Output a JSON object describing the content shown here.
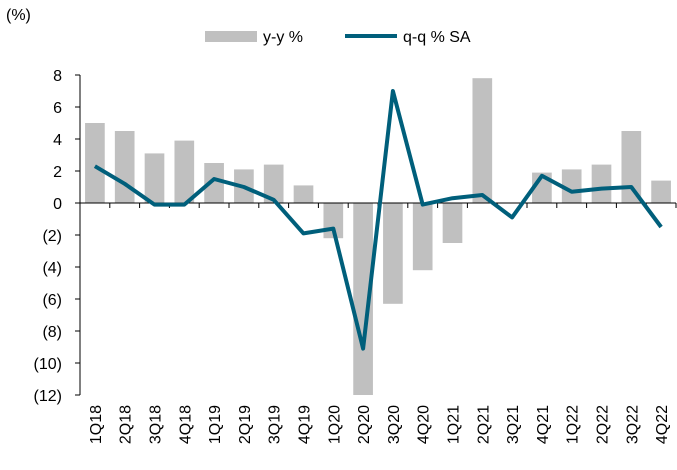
{
  "chart_data": {
    "type": "bar-line",
    "y_label": "(%)",
    "categories": [
      "1Q18",
      "2Q18",
      "3Q18",
      "4Q18",
      "1Q19",
      "2Q19",
      "3Q19",
      "4Q19",
      "1Q20",
      "2Q20",
      "3Q20",
      "4Q20",
      "1Q21",
      "2Q21",
      "3Q21",
      "4Q21",
      "1Q22",
      "2Q22",
      "3Q22",
      "4Q22"
    ],
    "series": [
      {
        "name": "y-y %",
        "type": "bar",
        "color": "#c0c0c0",
        "values": [
          5.0,
          4.5,
          3.1,
          3.9,
          2.5,
          2.1,
          2.4,
          1.1,
          -2.2,
          -12.0,
          -6.3,
          -4.2,
          -2.5,
          7.8,
          0,
          1.9,
          2.1,
          2.4,
          4.5,
          1.4
        ]
      },
      {
        "name": "q-q % SA",
        "type": "line",
        "color": "#005f7b",
        "values": [
          2.3,
          1.2,
          -0.1,
          -0.1,
          1.5,
          1.0,
          0.2,
          -1.9,
          -1.6,
          -9.1,
          7.0,
          -0.1,
          0.3,
          0.5,
          -0.9,
          1.7,
          0.7,
          0.9,
          1.0,
          -1.5
        ]
      }
    ],
    "ylim": [
      -12,
      8
    ],
    "yticks": [
      8,
      6,
      4,
      2,
      0,
      {
        "value": -2,
        "label": "(2)"
      },
      {
        "value": -4,
        "label": "(4)"
      },
      {
        "value": -6,
        "label": "(6)"
      },
      {
        "value": -8,
        "label": "(8)"
      },
      {
        "value": -10,
        "label": "(10)"
      },
      {
        "value": -12,
        "label": "(12)"
      }
    ]
  }
}
